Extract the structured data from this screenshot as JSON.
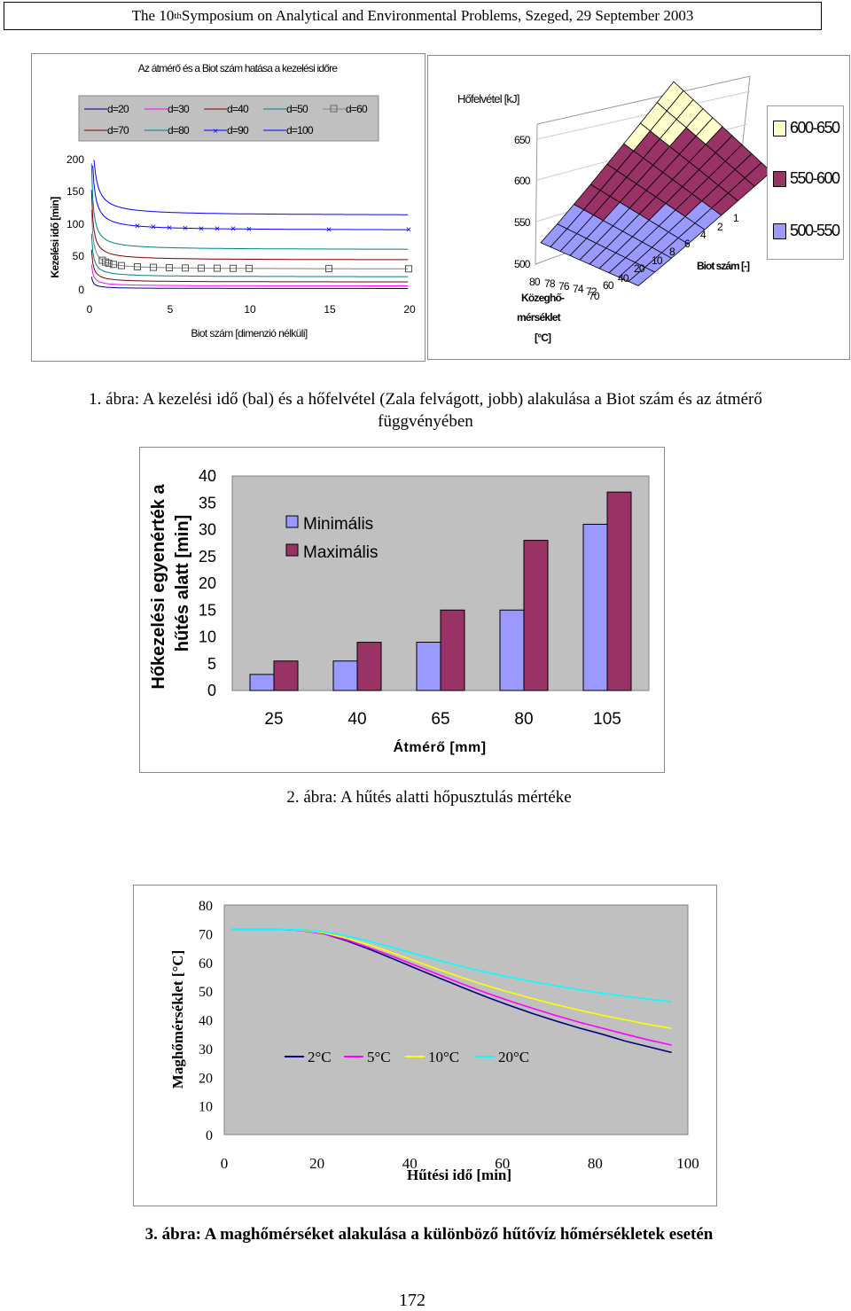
{
  "header": {
    "pre": "The 10",
    "sup": "th",
    "post": " Symposium on Analytical and Environmental Problems, Szeged, 29 September 2003"
  },
  "figure1": {
    "left": {
      "title": "Az átmérő és a Biot szám hatása a kezelési időre",
      "ylabel": "Kezelési idő [min]",
      "xlabel": "Biot szám [dimenzió nélküli]",
      "yticks": [
        "0",
        "50",
        "100",
        "150",
        "200"
      ],
      "xticks": [
        "0",
        "5",
        "10",
        "15",
        "20"
      ],
      "legend": [
        "d=20",
        "d=30",
        "d=40",
        "d=50",
        "d=60",
        "d=70",
        "d=80",
        "d=90",
        "d=100"
      ]
    },
    "right": {
      "zlabel": "Hőfelvétel [kJ]",
      "zticks": [
        "500",
        "550",
        "600",
        "650"
      ],
      "ylabel_lines": [
        "Közeghő-",
        "mérséklet",
        "[°C]"
      ],
      "yticks": [
        "80",
        "78",
        "76",
        "74",
        "72",
        "70",
        "60",
        "40",
        "20"
      ],
      "xlabel": "Biot szám [-]",
      "xticks": [
        "10",
        "8",
        "6",
        "4",
        "2",
        "1"
      ],
      "legend": [
        "600-650",
        "550-600",
        "500-550"
      ],
      "colors": [
        "#ffffcc",
        "#993366",
        "#9999ff"
      ]
    },
    "caption": "1. ábra: A kezelési idő (bal) és a hőfelvétel (Zala felvágott, jobb) alakulása a Biot szám és az átmérő függvényében"
  },
  "figure2": {
    "caption": "2. ábra: A hűtés alatti hőpusztulás mértéke",
    "chart_data": {
      "type": "bar",
      "categories": [
        "25",
        "40",
        "65",
        "80",
        "105"
      ],
      "series": [
        {
          "name": "Minimális",
          "values": [
            3,
            5.5,
            9,
            15,
            31
          ],
          "color": "#9999ff"
        },
        {
          "name": "Maximális",
          "values": [
            5.5,
            9,
            15,
            28,
            37
          ],
          "color": "#993366"
        }
      ],
      "xlabel": "Átmérő [mm]",
      "ylabel_lines": [
        "Hőkezelési egyenérték a",
        "hűtés alatt [min]"
      ],
      "ylim": [
        0,
        40
      ],
      "yticks": [
        "0",
        "5",
        "10",
        "15",
        "20",
        "25",
        "30",
        "35",
        "40"
      ],
      "plot_background": "#c0c0c0",
      "grid": false,
      "legend_position": "top-left"
    }
  },
  "figure3": {
    "caption": "3. ábra: A maghőmérséket alakulása a különböző hűtővíz hőmérsékletek esetén",
    "chart_data": {
      "type": "line",
      "x": [
        0,
        5,
        10,
        15,
        20,
        25,
        30,
        35,
        40,
        45,
        50,
        55,
        60,
        65,
        70,
        75,
        80,
        85,
        90,
        95
      ],
      "series": [
        {
          "name": "2°C",
          "color": "#000080",
          "values": [
            71.5,
            71.5,
            71.5,
            71.2,
            70,
            67.5,
            64.5,
            61.2,
            57.8,
            54.5,
            51.2,
            48,
            45,
            42.2,
            39.6,
            37.2,
            35,
            32.6,
            30.6,
            28.6
          ]
        },
        {
          "name": "5°C",
          "color": "#ff00ff",
          "values": [
            71.5,
            71.5,
            71.5,
            71.2,
            70,
            67.8,
            65,
            62,
            58.8,
            55.6,
            52.4,
            49.4,
            46.6,
            44,
            41.5,
            39.2,
            37.1,
            35,
            33,
            31.2
          ]
        },
        {
          "name": "10°C",
          "color": "#ffff00",
          "values": [
            71.5,
            71.5,
            71.5,
            71.3,
            70.3,
            68.4,
            66,
            63.2,
            60.3,
            57.4,
            54.6,
            52,
            49.6,
            47.4,
            45.3,
            43.4,
            41.6,
            40,
            38.4,
            37
          ]
        },
        {
          "name": "20°C",
          "color": "#00ffff",
          "values": [
            71.5,
            71.5,
            71.5,
            71.4,
            70.6,
            69.2,
            67.3,
            65.1,
            62.8,
            60.6,
            58.5,
            56.6,
            54.9,
            53.3,
            51.9,
            50.5,
            49.3,
            48.2,
            47.2,
            46.3
          ]
        }
      ],
      "xlabel": "Hűtési idő [min]",
      "ylabel": "Maghőmérséklet [°C]",
      "xlim": [
        0,
        100
      ],
      "ylim": [
        0,
        80
      ],
      "xticks": [
        "0",
        "20",
        "40",
        "60",
        "80",
        "100"
      ],
      "yticks": [
        "0",
        "10",
        "20",
        "30",
        "40",
        "50",
        "60",
        "70",
        "80"
      ],
      "plot_background": "#c0c0c0",
      "grid": false,
      "legend_position": "center"
    }
  },
  "page_number": "172"
}
